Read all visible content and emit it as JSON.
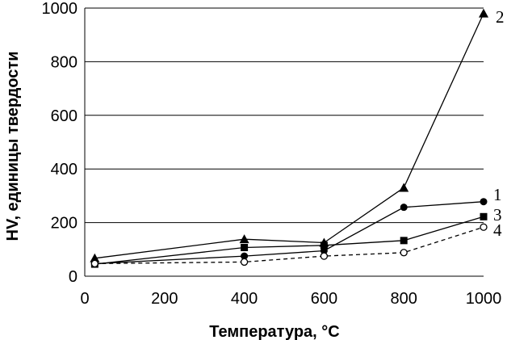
{
  "chart_data": {
    "type": "line",
    "xlabel": "Температура, °С",
    "ylabel": "HV, единицы твердости",
    "xlim": [
      0,
      1000
    ],
    "ylim": [
      0,
      1000
    ],
    "xticks": [
      0,
      200,
      400,
      600,
      800,
      1000
    ],
    "yticks": [
      0,
      200,
      400,
      600,
      800,
      1000
    ],
    "xtick_labels": [
      "0",
      "200",
      "400",
      "600",
      "800",
      "1000"
    ],
    "ytick_labels": [
      "0",
      "200",
      "400",
      "600",
      "800",
      "1000"
    ],
    "grid": "horizontal",
    "series": [
      {
        "name": "1",
        "marker": "circle-filled",
        "line": "solid",
        "x": [
          25,
          400,
          600,
          800,
          1000
        ],
        "y": [
          47,
          75,
          95,
          257,
          278
        ]
      },
      {
        "name": "2",
        "marker": "triangle-filled",
        "line": "solid",
        "x": [
          25,
          400,
          600,
          800,
          1000
        ],
        "y": [
          67,
          138,
          125,
          330,
          980
        ]
      },
      {
        "name": "3",
        "marker": "square-filled",
        "line": "solid",
        "x": [
          25,
          400,
          600,
          800,
          1000
        ],
        "y": [
          45,
          107,
          115,
          133,
          222
        ]
      },
      {
        "name": "4",
        "marker": "circle-open",
        "line": "dashed",
        "x": [
          25,
          400,
          600,
          800,
          1000
        ],
        "y": [
          47,
          53,
          75,
          88,
          183
        ]
      }
    ]
  }
}
